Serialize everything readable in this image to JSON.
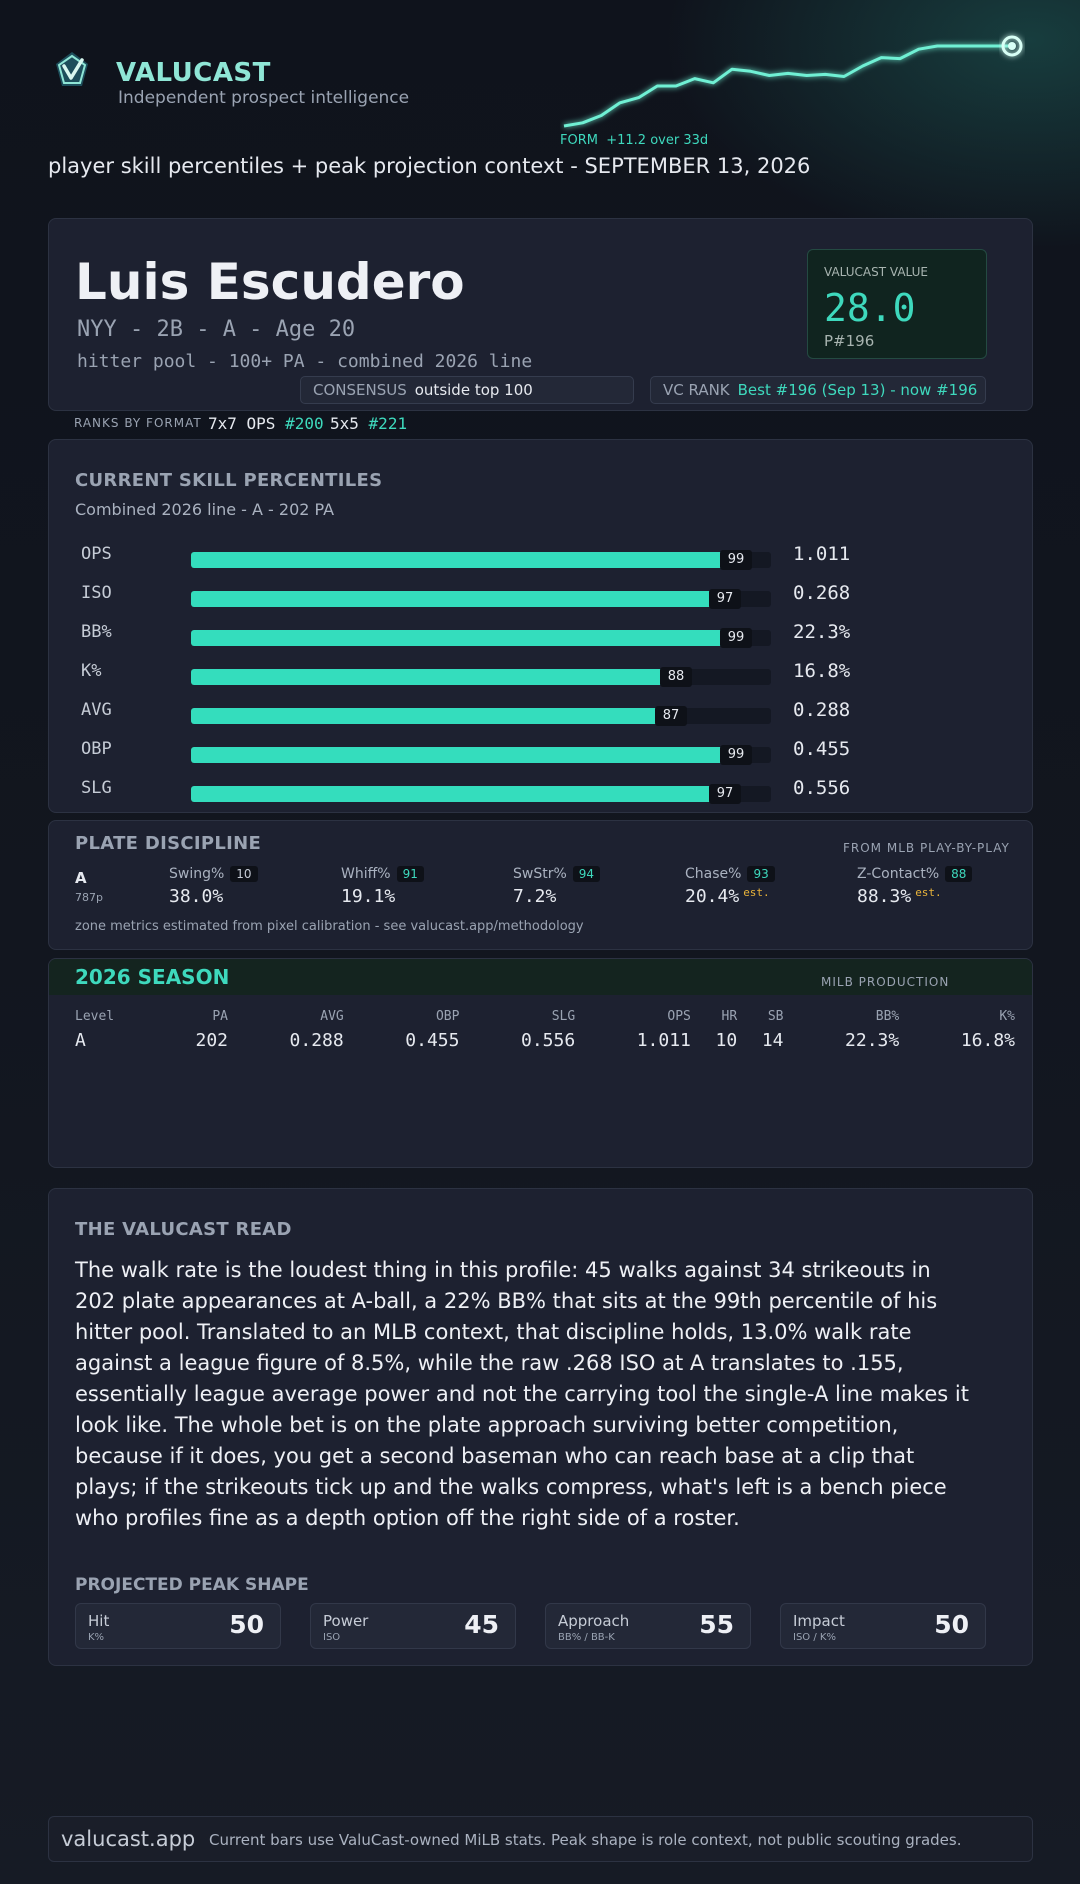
{
  "header": {
    "brand": "VALUCAST",
    "tagline": "Independent prospect intelligence",
    "form_label": "FORM",
    "form_delta": "+11.2 over 33d",
    "subtitle": "player skill percentiles + peak projection context - SEPTEMBER 13, 2026",
    "accent": "#3ed9bd"
  },
  "form_trend": [
    0,
    3,
    10,
    22,
    27,
    38,
    38,
    45,
    41,
    54,
    52,
    48,
    50,
    48,
    49,
    47,
    57,
    65,
    64,
    73,
    76,
    76,
    76,
    76,
    76
  ],
  "player": {
    "name": "Luis Escudero",
    "meta": "NYY - 2B - A - Age 20",
    "pool": "hitter pool - 100+ PA - combined 2026 line",
    "value_label": "VALUCAST VALUE",
    "value": "28.0",
    "value_rank": "P#196",
    "consensus_label": "CONSENSUS",
    "consensus_value": "outside top 100",
    "vcrank_label": "VC RANK",
    "vcrank_value": "Best #196 (Sep 13) - now #196"
  },
  "ranks_by_format": {
    "label": "RANKS BY FORMAT",
    "f1_name": "7x7 OPS",
    "f1_rank": "#200",
    "f2_name": "5x5",
    "f2_rank": "#221"
  },
  "skills": {
    "title": "CURRENT SKILL PERCENTILES",
    "subtitle": "Combined 2026 line - A - 202 PA",
    "rows": [
      {
        "label": "OPS",
        "pct": 99,
        "value": "1.011"
      },
      {
        "label": "ISO",
        "pct": 97,
        "value": "0.268"
      },
      {
        "label": "BB%",
        "pct": 99,
        "value": "22.3%"
      },
      {
        "label": "K%",
        "pct": 88,
        "value": "16.8%"
      },
      {
        "label": "AVG",
        "pct": 87,
        "value": "0.288"
      },
      {
        "label": "OBP",
        "pct": 99,
        "value": "0.455"
      },
      {
        "label": "SLG",
        "pct": 97,
        "value": "0.556"
      }
    ]
  },
  "plate_discipline": {
    "title": "PLATE DISCIPLINE",
    "source": "FROM MLB PLAY-BY-PLAY",
    "level": "A",
    "pitches": "787p",
    "metrics": [
      {
        "label": "Swing%",
        "pct": "10",
        "value": "38.0%",
        "est": ""
      },
      {
        "label": "Whiff%",
        "pct": "91",
        "value": "19.1%",
        "est": ""
      },
      {
        "label": "SwStr%",
        "pct": "94",
        "value": "7.2%",
        "est": ""
      },
      {
        "label": "Chase%",
        "pct": "93",
        "value": "20.4%",
        "est": "est."
      },
      {
        "label": "Z-Contact%",
        "pct": "88",
        "value": "88.3%",
        "est": "est."
      }
    ],
    "note": "zone metrics estimated from pixel calibration - see valucast.app/methodology"
  },
  "season": {
    "title": "2026 SEASON",
    "tag": "MILB PRODUCTION",
    "headers": [
      "Level",
      "PA",
      "AVG",
      "OBP",
      "SLG",
      "OPS",
      "HR",
      "SB",
      "BB%",
      "K%"
    ],
    "rows": [
      [
        "A",
        "202",
        "0.288",
        "0.455",
        "0.556",
        "1.011",
        "10",
        "14",
        "22.3%",
        "16.8%"
      ]
    ]
  },
  "read": {
    "title": "THE VALUCAST READ",
    "text": "The walk rate is the loudest thing in this profile: 45 walks against 34 strikeouts in 202 plate appearances at A-ball, a 22% BB% that sits at the 99th percentile of his hitter pool. Translated to an MLB context, that discipline holds, 13.0% walk rate against a league figure of 8.5%, while the raw .268 ISO at A translates to .155, essentially league average power and not the carrying tool the single-A line makes it look like. The whole bet is on the plate approach surviving better competition, because if it does, you get a second baseman who can reach base at a clip that plays; if the strikeouts tick up and the walks compress, what's left is a bench piece who profiles fine as a depth option off the right side of a roster.",
    "peak_title": "PROJECTED PEAK SHAPE",
    "peak": [
      {
        "label": "Hit",
        "sub": "K%",
        "value": "50"
      },
      {
        "label": "Power",
        "sub": "ISO",
        "value": "45"
      },
      {
        "label": "Approach",
        "sub": "BB% / BB-K",
        "value": "55"
      },
      {
        "label": "Impact",
        "sub": "ISO / K%",
        "value": "50"
      }
    ]
  },
  "footer": {
    "site": "valucast.app",
    "note": "Current bars use ValuCast-owned MiLB stats. Peak shape is role context, not public scouting grades."
  }
}
